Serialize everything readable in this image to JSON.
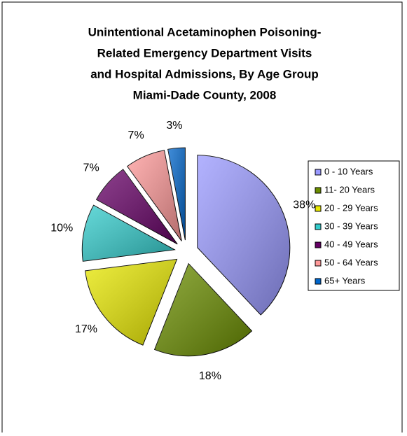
{
  "chart_data": {
    "type": "pie",
    "title": [
      "Unintentional Acetaminophen Poisoning-",
      "Related Emergency Department Visits",
      "and Hospital Admissions, By Age Group",
      "Miami-Dade County, 2008"
    ],
    "categories": [
      "0 - 10 Years",
      "11- 20 Years",
      "20 - 29 Years",
      "30 - 39 Years",
      "40 - 49 Years",
      "50 - 64 Years",
      "65+ Years"
    ],
    "values": [
      38,
      18,
      17,
      10,
      7,
      7,
      3
    ],
    "value_labels": [
      "38%",
      "18%",
      "17%",
      "10%",
      "7%",
      "7%",
      "3%"
    ],
    "colors": [
      "#9999ff",
      "#6b8e00",
      "#e8e800",
      "#33cccc",
      "#660066",
      "#ff9999",
      "#0066cc"
    ],
    "legend": "right"
  }
}
